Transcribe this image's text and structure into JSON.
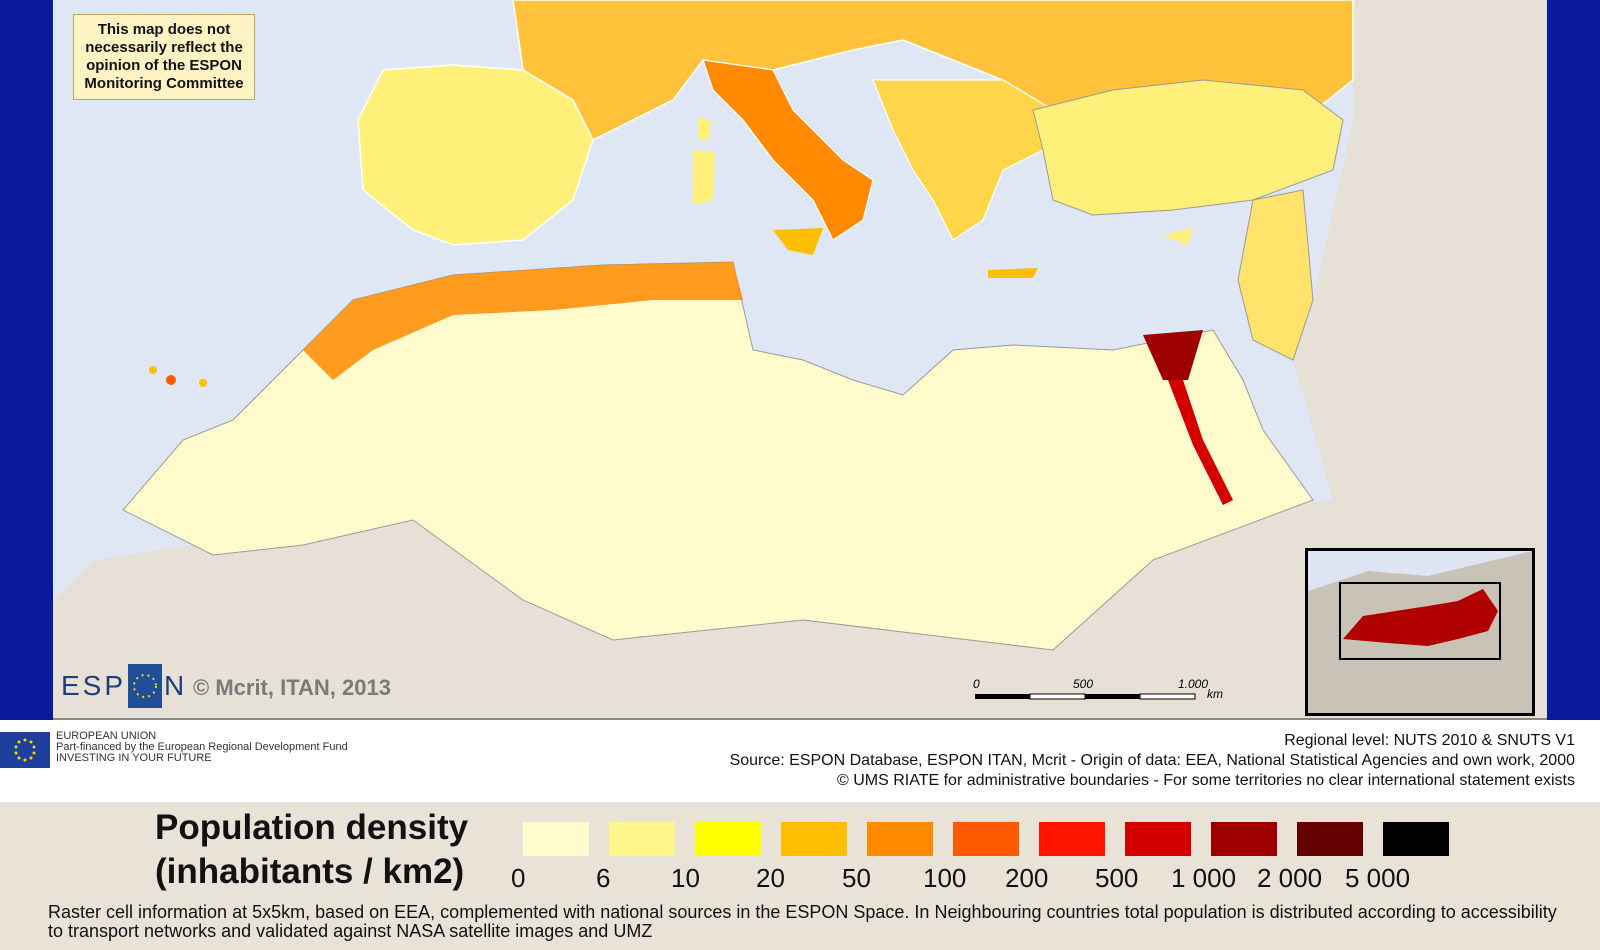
{
  "map": {
    "disclaimer": [
      "This map does not",
      "necessarily reflect the",
      "opinion of the ESPON",
      "Monitoring Committee"
    ],
    "logo_text": "ESPON",
    "copyright": "© Mcrit, ITAN, 2013",
    "scale_labels": [
      "0",
      "500",
      "1.000",
      "km"
    ]
  },
  "footer": {
    "eu_lines": [
      "EUROPEAN UNION",
      "Part-financed by the European Regional Development Fund",
      "INVESTING IN YOUR FUTURE"
    ],
    "source_lines": [
      "Regional level: NUTS 2010 & SNUTS V1",
      "Source: ESPON Database, ESPON ITAN, Mcrit - Origin of data: EEA, National Statistical Agencies and own work, 2000",
      "© UMS RIATE for administrative boundaries - For some territories no clear international statement exists"
    ]
  },
  "legend": {
    "title_line1": "Population density",
    "title_line2": "(inhabitants / km2)",
    "labels": [
      "0",
      "6",
      "10",
      "20",
      "50",
      "100",
      "200",
      "500",
      "1 000",
      "2 000",
      "5 000"
    ],
    "colors": [
      "#fffbcc",
      "#fff58a",
      "#ffff00",
      "#ffbf00",
      "#ff8a00",
      "#ff5a00",
      "#ff1400",
      "#d40000",
      "#9e0000",
      "#640000",
      "#000000"
    ],
    "note": "Raster cell information at 5x5km, based on EEA, complemented with national sources in the ESPON Space. In Neighbouring countries total population is distributed according to accessibility to transport networks and validated against NASA satellite images and UMZ"
  },
  "colors": {
    "sea": "#dfe7f5",
    "land_low": "#fffbcc",
    "land_other": "#e6e0d6",
    "frame": "#0a1a9b"
  }
}
